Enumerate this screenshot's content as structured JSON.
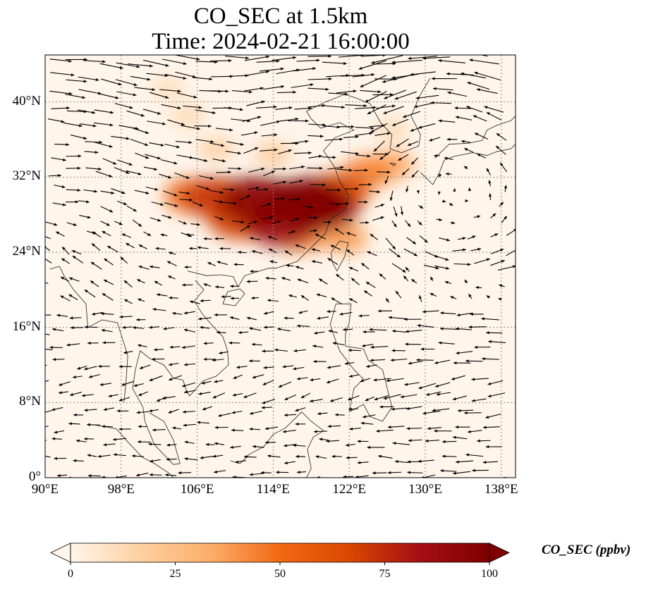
{
  "title": {
    "line1": "CO_SEC at 1.5km",
    "line2": "Time: 2024-02-21 16:00:00"
  },
  "map": {
    "lon_range": [
      90,
      139.5
    ],
    "lat_range": [
      0,
      45
    ],
    "lat_ticks": [
      {
        "value": 40,
        "label": "40°N"
      },
      {
        "value": 32,
        "label": "32°N"
      },
      {
        "value": 24,
        "label": "24°N"
      },
      {
        "value": 16,
        "label": "16°N"
      },
      {
        "value": 8,
        "label": "8°N"
      },
      {
        "value": 0,
        "label": "0°"
      }
    ],
    "lon_ticks": [
      {
        "value": 90,
        "label": "90°E"
      },
      {
        "value": 98,
        "label": "98°E"
      },
      {
        "value": 106,
        "label": "106°E"
      },
      {
        "value": 114,
        "label": "114°E"
      },
      {
        "value": 122,
        "label": "122°E"
      },
      {
        "value": 130,
        "label": "130°E"
      },
      {
        "value": 138,
        "label": "138°E"
      }
    ],
    "gridlines": true,
    "features": [
      "coastlines",
      "country-borders",
      "wind-vectors",
      "co-concentration-field"
    ]
  },
  "colorbar": {
    "label": "CO_SEC (ppbv)",
    "min": 0,
    "max": 100,
    "ticks": [
      {
        "value": 0,
        "label": "0"
      },
      {
        "value": 25,
        "label": "25"
      },
      {
        "value": 50,
        "label": "50"
      },
      {
        "value": 75,
        "label": "75"
      },
      {
        "value": 100,
        "label": "100"
      }
    ],
    "colors": [
      "#fff5eb",
      "#fdd0a2",
      "#fdae6b",
      "#f16913",
      "#d94801",
      "#a50f15",
      "#7f0000"
    ],
    "extend": "both"
  },
  "chart_data": {
    "type": "heatmap",
    "title": "CO_SEC at 1.5km\nTime: 2024-02-21 16:00:00",
    "xlabel": "",
    "ylabel": "",
    "xlim": [
      90,
      139.5
    ],
    "ylim": [
      0,
      45
    ],
    "value_range": [
      0,
      100
    ],
    "units": "ppbv",
    "plumes": [
      {
        "lon": 117.5,
        "lat": 29.3,
        "value": 100
      },
      {
        "lon": 112.5,
        "lat": 29.5,
        "value": 95
      },
      {
        "lon": 119.0,
        "lat": 28.7,
        "value": 92
      },
      {
        "lon": 115.0,
        "lat": 27.0,
        "value": 88
      },
      {
        "lon": 110.5,
        "lat": 27.5,
        "value": 70
      },
      {
        "lon": 108.0,
        "lat": 29.8,
        "value": 72
      },
      {
        "lon": 105.5,
        "lat": 30.0,
        "value": 55
      },
      {
        "lon": 121.0,
        "lat": 30.5,
        "value": 65
      },
      {
        "lon": 124.0,
        "lat": 32.5,
        "value": 45
      },
      {
        "lon": 126.5,
        "lat": 33.3,
        "value": 35
      },
      {
        "lon": 117.0,
        "lat": 25.5,
        "value": 40
      },
      {
        "lon": 121.5,
        "lat": 25.5,
        "value": 38
      },
      {
        "lon": 114.0,
        "lat": 34.5,
        "value": 20
      },
      {
        "lon": 108.0,
        "lat": 35.0,
        "value": 18
      },
      {
        "lon": 105.0,
        "lat": 38.5,
        "value": 14
      },
      {
        "lon": 126.5,
        "lat": 37.0,
        "value": 14
      },
      {
        "lon": 103.0,
        "lat": 41.5,
        "value": 12
      }
    ]
  }
}
